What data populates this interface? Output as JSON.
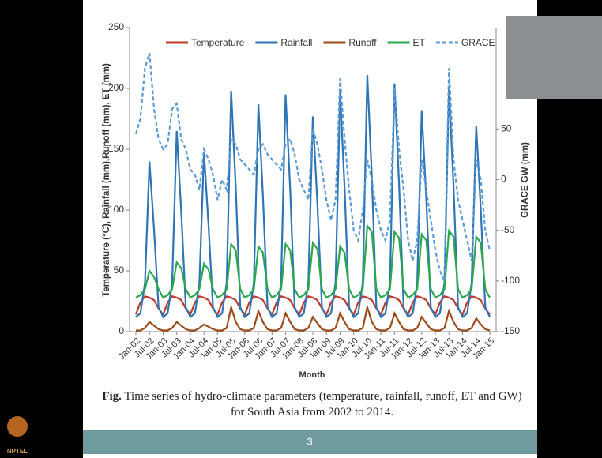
{
  "chart_data": {
    "type": "line",
    "ylabel": "Temperature (°C), Rainfall (mm),Runoff (mm), ET (mm)",
    "y2label": "GRACE GW (mm)",
    "xlabel": "Month",
    "categories": [
      "Jan-02",
      null,
      null,
      "Jul-02",
      null,
      null,
      "Jan-03",
      null,
      null,
      "Jul-03",
      null,
      null,
      "Jan-04",
      null,
      null,
      "Jul-04",
      null,
      null,
      "Jan-05",
      null,
      null,
      "Jul-05",
      null,
      null,
      "Jan-06",
      null,
      null,
      "Jul-06",
      null,
      null,
      "Jan-07",
      null,
      null,
      "Jul-07",
      null,
      null,
      "Jan-08",
      null,
      null,
      "Jul-08",
      null,
      null,
      "Jan-09",
      null,
      null,
      "Jul-09",
      null,
      null,
      "Jan-10",
      null,
      null,
      "Jul-10",
      null,
      null,
      "Jan-11",
      null,
      null,
      "Jul-11",
      null,
      null,
      "Jan-12",
      null,
      null,
      "Jul-12",
      null,
      null,
      "Jan-13",
      null,
      null,
      "Jul-13",
      null,
      null,
      "Jan-14",
      null,
      null,
      "Jul-14",
      null,
      null,
      "Jan-15"
    ],
    "ylim": [
      0,
      250
    ],
    "yticks": [
      0,
      50,
      100,
      150,
      200,
      250
    ],
    "y2lim": [
      -150,
      150
    ],
    "y2ticks": [
      -150,
      -100,
      -50,
      0,
      50
    ],
    "series": [
      {
        "name": "Temperature",
        "color": "#c0392b",
        "values": [
          14,
          24,
          29,
          28,
          26,
          19,
          14,
          24,
          29,
          28,
          26,
          19,
          14,
          24,
          29,
          28,
          26,
          19,
          14,
          24,
          29,
          28,
          26,
          19,
          14,
          24,
          29,
          28,
          26,
          19,
          14,
          24,
          29,
          28,
          26,
          19,
          14,
          24,
          29,
          28,
          26,
          19,
          14,
          24,
          29,
          28,
          26,
          19,
          14,
          24,
          29,
          28,
          26,
          19,
          14,
          24,
          29,
          28,
          26,
          19,
          14,
          24,
          29,
          28,
          26,
          19,
          14,
          24,
          29,
          28,
          26,
          19,
          14,
          24,
          29,
          28,
          26,
          19,
          14
        ]
      },
      {
        "name": "Rainfall",
        "color": "#2e75b6",
        "values": [
          12,
          15,
          40,
          140,
          84,
          20,
          12,
          15,
          40,
          165,
          99,
          20,
          12,
          15,
          40,
          147,
          88,
          20,
          12,
          15,
          40,
          198,
          119,
          20,
          12,
          15,
          40,
          187,
          112,
          20,
          12,
          15,
          40,
          195,
          117,
          20,
          12,
          15,
          40,
          177,
          106,
          20,
          12,
          15,
          40,
          197,
          118,
          20,
          12,
          15,
          40,
          211,
          127,
          20,
          12,
          15,
          40,
          204,
          122,
          20,
          12,
          15,
          40,
          182,
          109,
          20,
          12,
          15,
          40,
          200,
          120,
          20,
          12,
          15,
          40,
          169,
          101,
          20,
          12
        ]
      },
      {
        "name": "Runoff",
        "color": "#9c4a1a",
        "values": [
          1,
          1,
          3,
          8,
          5,
          2,
          1,
          1,
          3,
          8,
          5,
          2,
          1,
          1,
          3,
          6,
          4,
          2,
          1,
          1,
          3,
          20,
          8,
          2,
          1,
          1,
          3,
          17,
          8,
          2,
          1,
          1,
          3,
          15,
          8,
          2,
          1,
          1,
          3,
          12,
          7,
          2,
          1,
          1,
          3,
          15,
          8,
          2,
          1,
          1,
          3,
          20,
          8,
          2,
          1,
          1,
          3,
          15,
          8,
          2,
          1,
          1,
          3,
          12,
          7,
          2,
          1,
          1,
          3,
          17,
          8,
          2,
          1,
          1,
          3,
          11,
          6,
          2,
          1
        ]
      },
      {
        "name": "ET",
        "color": "#2aa84a",
        "values": [
          28,
          30,
          35,
          50,
          45,
          35,
          28,
          30,
          35,
          57,
          52,
          35,
          28,
          30,
          35,
          56,
          51,
          35,
          28,
          30,
          35,
          72,
          67,
          35,
          28,
          30,
          35,
          70,
          65,
          35,
          28,
          30,
          35,
          72,
          67,
          35,
          28,
          30,
          35,
          73,
          68,
          35,
          28,
          30,
          35,
          70,
          65,
          35,
          28,
          30,
          35,
          87,
          82,
          35,
          28,
          30,
          35,
          82,
          77,
          35,
          28,
          30,
          35,
          80,
          75,
          35,
          28,
          30,
          35,
          83,
          78,
          35,
          28,
          30,
          35,
          78,
          73,
          35,
          28
        ]
      },
      {
        "name": "GRACE",
        "color": "#5b9bd5",
        "axis": "y2",
        "dashed": true,
        "values": [
          45,
          60,
          110,
          125,
          70,
          40,
          30,
          35,
          70,
          75,
          40,
          30,
          10,
          5,
          -10,
          30,
          20,
          5,
          -20,
          0,
          -10,
          40,
          35,
          20,
          15,
          10,
          5,
          30,
          35,
          25,
          20,
          15,
          10,
          35,
          40,
          25,
          0,
          -10,
          -20,
          50,
          35,
          10,
          -20,
          -40,
          -20,
          100,
          40,
          -10,
          -50,
          -60,
          -30,
          20,
          0,
          -30,
          -50,
          -60,
          -40,
          90,
          30,
          -10,
          -60,
          -80,
          -60,
          20,
          -10,
          -40,
          -70,
          -90,
          -100,
          110,
          20,
          -20,
          -40,
          -60,
          -80,
          20,
          0,
          -50,
          -70
        ]
      }
    ]
  },
  "slide": {
    "caption_label": "Fig.",
    "caption": "Time series of hydro-climate parameters (temperature, rainfall, runoff, ET and GW) for South Asia from 2002 to 2014.",
    "page_number": "3",
    "logo": "NPTEL"
  }
}
